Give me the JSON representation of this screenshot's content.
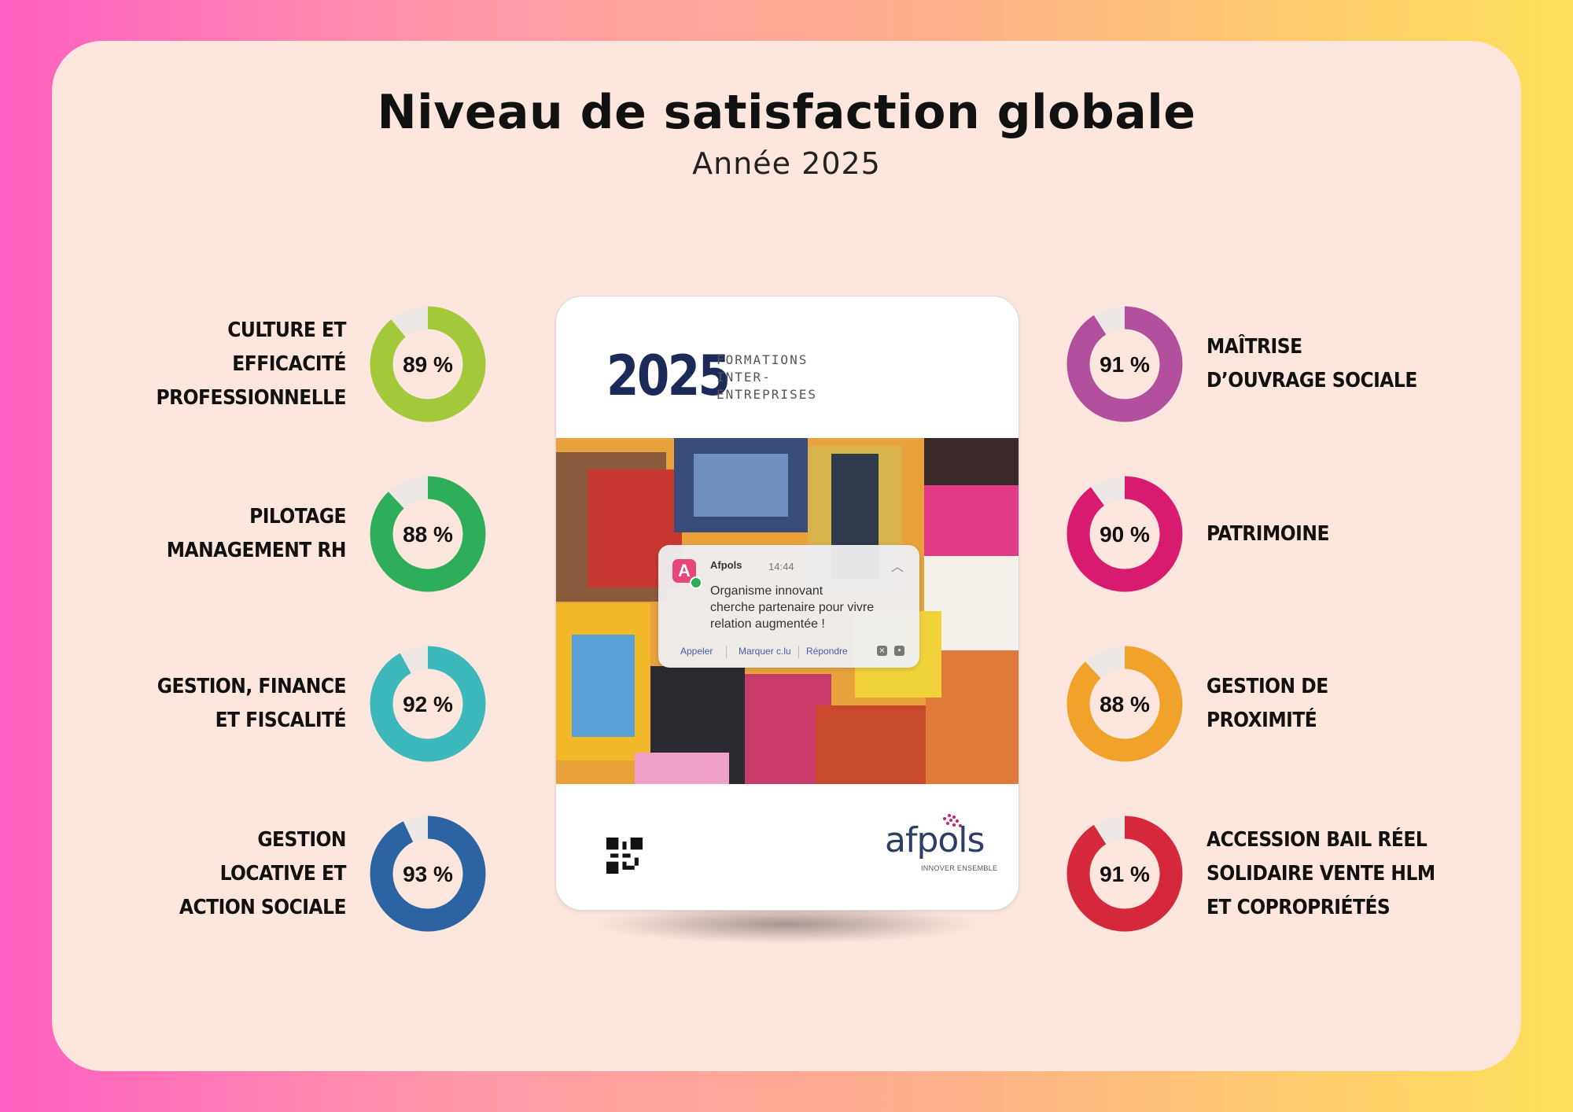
{
  "chart_data": {
    "type": "donut",
    "title": "Niveau de satisfaction globale",
    "subtitle": "Année 2025",
    "series": [
      {
        "label_lines": [
          "CULTURE ET",
          "EFFICACITÉ",
          "PROFESSIONNELLE"
        ],
        "value": 89,
        "display": "89 %",
        "color": "#a3c93a"
      },
      {
        "label_lines": [
          "PILOTAGE",
          "MANAGEMENT RH"
        ],
        "value": 88,
        "display": "88 %",
        "color": "#2fae5a"
      },
      {
        "label_lines": [
          "GESTION, FINANCE",
          "ET FISCALITÉ"
        ],
        "value": 92,
        "display": "92 %",
        "color": "#3db8bd"
      },
      {
        "label_lines": [
          "GESTION",
          "LOCATIVE ET",
          "ACTION SOCIALE"
        ],
        "value": 93,
        "display": "93 %",
        "color": "#2c64a3"
      },
      {
        "label_lines": [
          "MAÎTRISE",
          "D’OUVRAGE  SOCIALE"
        ],
        "value": 91,
        "display": "91 %",
        "color": "#b2509e"
      },
      {
        "label_lines": [
          "PATRIMOINE"
        ],
        "value": 90,
        "display": "90 %",
        "color": "#d81b6e"
      },
      {
        "label_lines": [
          "GESTION DE",
          "PROXIMITÉ"
        ],
        "value": 88,
        "display": "88 %",
        "color": "#f0a22a"
      },
      {
        "label_lines": [
          "ACCESSION BAIL RÉEL",
          "SOLIDAIRE VENTE HLM",
          "ET COPROPRIÉTÉS"
        ],
        "value": 91,
        "display": "91 %",
        "color": "#d5283a"
      }
    ],
    "track_color": "#ede8e6",
    "max": 100
  },
  "brochure": {
    "year": "2025",
    "subtitle_lines": [
      "FORMATIONS",
      "INTER-",
      "ENTREPRISES"
    ],
    "notification": {
      "app": "Afpols",
      "app_initial": "A",
      "time": "14:44",
      "message_lines": [
        "Organisme innovant",
        "cherche partenaire pour vivre",
        "relation augmentée !"
      ],
      "actions": [
        "Appeler",
        "Marquer c.lu",
        "Répondre"
      ]
    },
    "logo": "afpols",
    "tagline": "INNOVER ENSEMBLE"
  }
}
